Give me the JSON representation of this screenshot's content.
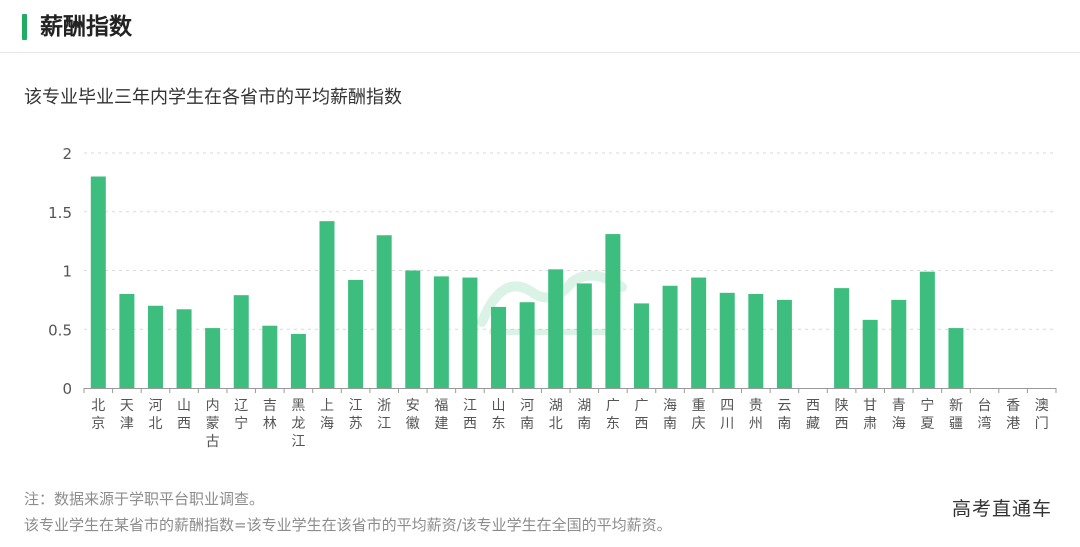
{
  "header": {
    "title": "薪酬指数",
    "accent_color": "#1ead62"
  },
  "overlay": {
    "watermark": "高考直通车"
  },
  "chart_data": {
    "type": "bar",
    "title": "该专业毕业三年内学生在各省市的平均薪酬指数",
    "xlabel": "",
    "ylabel": "",
    "ylim": [
      0,
      2
    ],
    "yticks": [
      "0",
      "0.5",
      "1",
      "1.5",
      "2"
    ],
    "grid": true,
    "bar_color": "#3dbe7e",
    "categories": [
      "北京",
      "天津",
      "河北",
      "山西",
      "内蒙古",
      "辽宁",
      "吉林",
      "黑龙江",
      "上海",
      "江苏",
      "浙江",
      "安徽",
      "福建",
      "江西",
      "山东",
      "河南",
      "湖北",
      "湖南",
      "广东",
      "广西",
      "海南",
      "重庆",
      "四川",
      "贵州",
      "云南",
      "西藏",
      "陕西",
      "甘肃",
      "青海",
      "宁夏",
      "新疆",
      "台湾",
      "香港",
      "澳门"
    ],
    "values": [
      1.8,
      0.8,
      0.7,
      0.67,
      0.51,
      0.79,
      0.53,
      0.46,
      1.42,
      0.92,
      1.3,
      1.0,
      0.95,
      0.94,
      0.69,
      0.73,
      1.01,
      0.89,
      1.31,
      0.72,
      0.87,
      0.94,
      0.81,
      0.8,
      0.75,
      null,
      0.85,
      0.58,
      0.75,
      0.99,
      0.51,
      null,
      null,
      null
    ]
  },
  "footer": {
    "note_line1": "注：数据来源于学职平台职业调查。",
    "note_line2": "该专业学生在某省市的薪酬指数=该专业学生在该省市的平均薪资/该专业学生在全国的平均薪资。"
  }
}
